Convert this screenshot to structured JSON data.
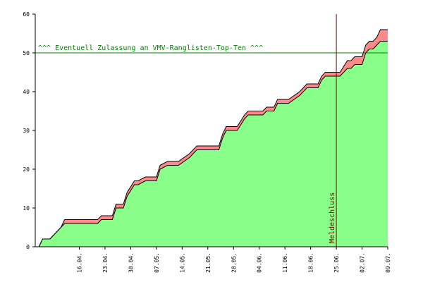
{
  "chart_data": {
    "type": "area",
    "title": "",
    "xlabel": "",
    "ylabel": "",
    "ylim": [
      0,
      60
    ],
    "y_ticks": [
      0,
      10,
      20,
      30,
      40,
      50,
      60
    ],
    "x_range_days": [
      "04.04.",
      "09.07."
    ],
    "x_ticks": [
      "16.04.",
      "23.04.",
      "30.04.",
      "07.05.",
      "14.05.",
      "21.05.",
      "28.05.",
      "04.06.",
      "11.06.",
      "18.06.",
      "25.06.",
      "02.07.",
      "09.07."
    ],
    "grid": false,
    "legend": "none",
    "colors": {
      "lower_fill": "#88ff88",
      "upper_fill": "#ff8888",
      "outline": "#000000",
      "threshold_line": "#008000",
      "marker_line": "#800000"
    },
    "series": [
      {
        "values_note": "lower (green) cumulative curve, points as [date, value]",
        "points": [
          [
            "05.04.",
            0
          ],
          [
            "06.04.",
            2
          ],
          [
            "08.04.",
            2
          ],
          [
            "10.04.",
            4
          ],
          [
            "11.04.",
            5
          ],
          [
            "12.04.",
            6
          ],
          [
            "21.04.",
            6
          ],
          [
            "22.04.",
            7
          ],
          [
            "25.04.",
            7
          ],
          [
            "26.04.",
            10
          ],
          [
            "28.04.",
            10
          ],
          [
            "29.04.",
            13
          ],
          [
            "01.05.",
            16
          ],
          [
            "02.05.",
            16
          ],
          [
            "04.05.",
            17
          ],
          [
            "07.05.",
            17
          ],
          [
            "08.05.",
            20
          ],
          [
            "10.05.",
            21
          ],
          [
            "13.05.",
            21
          ],
          [
            "16.05.",
            23
          ],
          [
            "18.05.",
            25
          ],
          [
            "24.05.",
            25
          ],
          [
            "25.05.",
            28
          ],
          [
            "26.05.",
            30
          ],
          [
            "29.05.",
            30
          ],
          [
            "31.05.",
            33
          ],
          [
            "01.06.",
            34
          ],
          [
            "05.06.",
            34
          ],
          [
            "06.06.",
            35
          ],
          [
            "08.06.",
            35
          ],
          [
            "09.06.",
            37
          ],
          [
            "12.06.",
            37
          ],
          [
            "15.06.",
            39
          ],
          [
            "17.06.",
            41
          ],
          [
            "20.06.",
            41
          ],
          [
            "21.06.",
            43
          ],
          [
            "22.06.",
            44
          ],
          [
            "24.06.",
            44
          ],
          [
            "25.06.",
            44
          ],
          [
            "26.06.",
            44
          ],
          [
            "28.06.",
            46
          ],
          [
            "29.06.",
            46
          ],
          [
            "30.06.",
            47
          ],
          [
            "02.07.",
            47
          ],
          [
            "03.07.",
            50
          ],
          [
            "04.07.",
            51
          ],
          [
            "05.07.",
            51
          ],
          [
            "06.07.",
            52
          ],
          [
            "07.07.",
            53
          ],
          [
            "09.07.",
            53
          ]
        ]
      },
      {
        "values_note": "upper (red) cumulative curve, points as [date, value]",
        "points": [
          [
            "05.04.",
            0
          ],
          [
            "06.04.",
            2
          ],
          [
            "08.04.",
            2
          ],
          [
            "10.04.",
            4
          ],
          [
            "11.04.",
            5
          ],
          [
            "12.04.",
            7
          ],
          [
            "21.04.",
            7
          ],
          [
            "22.04.",
            8
          ],
          [
            "25.04.",
            8
          ],
          [
            "26.04.",
            11
          ],
          [
            "28.04.",
            11
          ],
          [
            "29.04.",
            14
          ],
          [
            "01.05.",
            17
          ],
          [
            "02.05.",
            17
          ],
          [
            "04.05.",
            18
          ],
          [
            "07.05.",
            18
          ],
          [
            "08.05.",
            21
          ],
          [
            "10.05.",
            22
          ],
          [
            "13.05.",
            22
          ],
          [
            "16.05.",
            24
          ],
          [
            "18.05.",
            26
          ],
          [
            "24.05.",
            26
          ],
          [
            "25.05.",
            29
          ],
          [
            "26.05.",
            31
          ],
          [
            "29.05.",
            31
          ],
          [
            "31.05.",
            34
          ],
          [
            "01.06.",
            35
          ],
          [
            "05.06.",
            35
          ],
          [
            "06.06.",
            36
          ],
          [
            "08.06.",
            36
          ],
          [
            "09.06.",
            38
          ],
          [
            "12.06.",
            38
          ],
          [
            "15.06.",
            40
          ],
          [
            "17.06.",
            42
          ],
          [
            "20.06.",
            42
          ],
          [
            "21.06.",
            44
          ],
          [
            "22.06.",
            45
          ],
          [
            "24.06.",
            45
          ],
          [
            "25.06.",
            45
          ],
          [
            "26.06.",
            45
          ],
          [
            "28.06.",
            48
          ],
          [
            "29.06.",
            48
          ],
          [
            "30.06.",
            49
          ],
          [
            "02.07.",
            49
          ],
          [
            "03.07.",
            52
          ],
          [
            "04.07.",
            53
          ],
          [
            "05.07.",
            53
          ],
          [
            "06.07.",
            54
          ],
          [
            "07.07.",
            56
          ],
          [
            "09.07.",
            56
          ]
        ]
      }
    ],
    "threshold": {
      "value": 50,
      "label": "^^^ Eventuell Zulassung an VMV-Ranglisten-Top-Ten ^^^"
    },
    "marker": {
      "date": "25.06.",
      "label": "Meldeschluss"
    }
  }
}
